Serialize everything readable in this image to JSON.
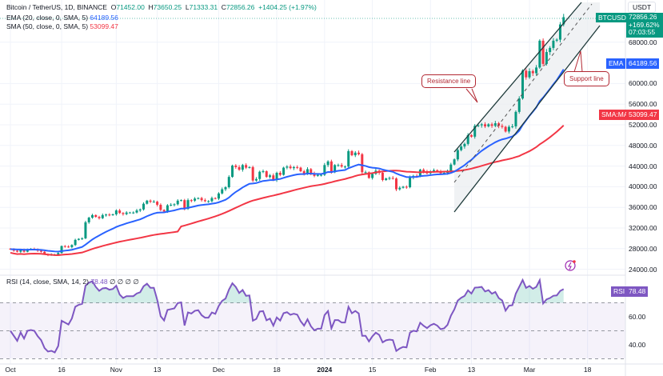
{
  "header": {
    "symbol": "Bitcoin / TetherUS, 1D, BINANCE",
    "open": "71452.00",
    "high": "73650.25",
    "low": "71333.31",
    "close": "72856.26",
    "change": "+1404.25 (+1.97%)",
    "o_label": "O",
    "h_label": "H",
    "l_label": "L",
    "c_label": "C"
  },
  "indicators": {
    "ema_label": "EMA (20, close, 0, SMA, 5)",
    "ema_value": "64189.56",
    "sma_label": "SMA (50, close, 0, SMA, 5)",
    "sma_value": "53099.47",
    "rsi_label": "RSI (14, close, SMA, 14, 2)",
    "rsi_value": "78.48",
    "rsi_extra": "∅ ∅ ∅ ∅"
  },
  "price_axis": {
    "currency": "USDT",
    "ticks": [
      "68000.00",
      "60000.00",
      "56000.00",
      "52000.00",
      "48000.00",
      "44000.00",
      "40000.00",
      "36000.00",
      "32000.00",
      "28000.00",
      "24000.00"
    ],
    "tick_values": [
      68000,
      60000,
      56000,
      52000,
      48000,
      44000,
      40000,
      36000,
      32000,
      28000,
      24000
    ]
  },
  "rsi_axis": {
    "ticks": [
      "60.00",
      "40.00"
    ]
  },
  "tags": {
    "symbol": "BTCUSDT",
    "price": "72856.26",
    "pct": "+169.62%",
    "countdown": "07:03:55",
    "ema": "EMA",
    "ema_value": "64189.56",
    "sma": "SMA:MA",
    "sma_value": "53099.47",
    "rsi": "RSI",
    "rsi_value": "78.48"
  },
  "time_axis": {
    "labels": [
      "Oct",
      "16",
      "Nov",
      "13",
      "Dec",
      "18",
      "2024",
      "15",
      "Feb",
      "13",
      "Mar",
      "18"
    ],
    "day_index": [
      0,
      15,
      31,
      43,
      61,
      78,
      92,
      106,
      123,
      135,
      152,
      169
    ]
  },
  "annotations": {
    "resistance": "Resistance line",
    "support": "Support line"
  },
  "colors": {
    "up": "#089981",
    "down": "#f23645",
    "ema": "#2962ff",
    "sma": "#f23645",
    "rsi": "#7e57c2",
    "channel": "#1e3a3a"
  },
  "chart_data": {
    "type": "candlestick",
    "start": "2023-10-01",
    "interval": "1D",
    "closes": [
      27900,
      27600,
      27400,
      27800,
      27400,
      27900,
      27950,
      27900,
      27600,
      27400,
      26900,
      26750,
      26850,
      26850,
      27150,
      28500,
      28400,
      28300,
      28700,
      29700,
      29900,
      30000,
      33100,
      34000,
      34500,
      34150,
      33900,
      34500,
      34600,
      34500,
      34650,
      35400,
      34900,
      34700,
      35000,
      35000,
      35000,
      35400,
      35600,
      36700,
      37300,
      37100,
      37100,
      36500,
      35500,
      35200,
      36400,
      36500,
      36600,
      37300,
      37400,
      35700,
      37400,
      37300,
      37700,
      37800,
      37400,
      37200,
      37200,
      37800,
      37700,
      38700,
      39500,
      39900,
      41900,
      44100,
      43800,
      43300,
      44200,
      43700,
      43800,
      41200,
      41500,
      42900,
      43000,
      41900,
      42200,
      41300,
      42700,
      42300,
      43700,
      43900,
      43600,
      43800,
      43700,
      43000,
      42500,
      43400,
      42600,
      42100,
      42300,
      42300,
      44200,
      44900,
      42800,
      44200,
      44200,
      43900,
      43900,
      46900,
      46100,
      46600,
      46300,
      42800,
      42800,
      41700,
      42500,
      43100,
      42700,
      41300,
      41600,
      41700,
      41600,
      39500,
      39800,
      40000,
      39900,
      41800,
      42100,
      42000,
      43300,
      42900,
      42600,
      43000,
      43200,
      43000,
      42600,
      42700,
      43100,
      44300,
      45300,
      47100,
      47800,
      48300,
      50000,
      49700,
      51800,
      51900,
      52100,
      51700,
      52100,
      51800,
      52300,
      51800,
      51600,
      50700,
      51600,
      51700,
      54500,
      57100,
      62500,
      61200,
      62400,
      62000,
      63100,
      68300,
      63800,
      66100,
      66900,
      68300,
      68500,
      71452,
      72856.26
    ],
    "overlays": [
      "EMA 20",
      "SMA 50"
    ],
    "ylim": [
      22000,
      74000
    ],
    "rsi_levels": [
      70,
      50,
      30
    ]
  }
}
